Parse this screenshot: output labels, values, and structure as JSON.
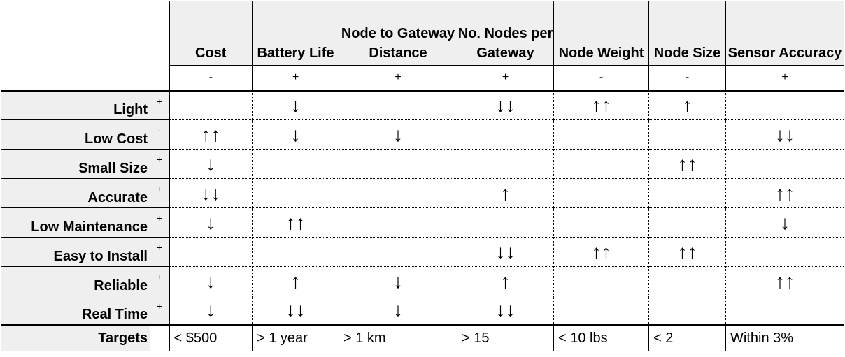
{
  "columns": [
    {
      "name": "Cost",
      "direction": "-"
    },
    {
      "name": "Battery Life",
      "direction": "+"
    },
    {
      "name": "Node to Gateway Distance",
      "direction": "+"
    },
    {
      "name": "No. Nodes per Gateway",
      "direction": "+"
    },
    {
      "name": "Node Weight",
      "direction": "-"
    },
    {
      "name": "Node Size",
      "direction": "-"
    },
    {
      "name": "Sensor Accuracy",
      "direction": "+"
    }
  ],
  "rows": [
    {
      "label": "Light",
      "sign": "+",
      "cells": [
        "",
        "↓",
        "",
        "↓↓",
        "↑↑",
        "↑",
        ""
      ]
    },
    {
      "label": "Low Cost",
      "sign": "-",
      "cells": [
        "↑↑",
        "↓",
        "↓",
        "",
        "",
        "",
        "↓↓"
      ]
    },
    {
      "label": "Small Size",
      "sign": "+",
      "cells": [
        "↓",
        "",
        "",
        "",
        "",
        "↑↑",
        ""
      ]
    },
    {
      "label": "Accurate",
      "sign": "+",
      "cells": [
        "↓↓",
        "",
        "",
        "↑",
        "",
        "",
        "↑↑"
      ]
    },
    {
      "label": "Low Maintenance",
      "sign": "+",
      "cells": [
        "↓",
        "↑↑",
        "",
        "",
        "",
        "",
        "↓"
      ]
    },
    {
      "label": "Easy to Install",
      "sign": "+",
      "cells": [
        "",
        "",
        "",
        "↓↓",
        "↑↑",
        "↑↑",
        ""
      ]
    },
    {
      "label": "Reliable",
      "sign": "+",
      "cells": [
        "↓",
        "↑",
        "↓",
        "↑",
        "",
        "",
        "↑↑"
      ]
    },
    {
      "label": "Real Time",
      "sign": "+",
      "cells": [
        "↓",
        "↓↓",
        "↓",
        "↓↓",
        "",
        "",
        ""
      ]
    }
  ],
  "targets": {
    "label": "Targets",
    "values": [
      "< $500",
      "> 1 year",
      "> 1 km",
      "> 15",
      "< 10 lbs",
      "< 2",
      "Within 3%"
    ]
  }
}
